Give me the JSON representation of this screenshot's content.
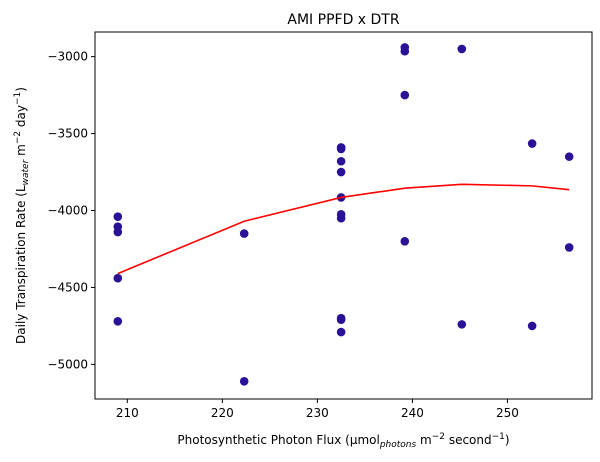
{
  "chart_data": {
    "type": "scatter",
    "title": "AMI PPFD x DTR",
    "xlabel": {
      "base": "Photosynthetic Photon Flux (μmol",
      "sub": "photons",
      "mid": " m",
      "sup1": "−2",
      "mid2": " second",
      "sup2": "−1",
      "end": ")"
    },
    "ylabel": {
      "base": "Daily Transpiration Rate (L",
      "sub": "water",
      "mid": " m",
      "sup1": "−2",
      "mid2": " day",
      "sup2": "−1",
      "end": ")"
    },
    "xlim": [
      206.6,
      258.9
    ],
    "ylim": [
      -5225,
      -2840
    ],
    "xticks": [
      210,
      220,
      230,
      240,
      250
    ],
    "xtick_labels": [
      "210",
      "220",
      "230",
      "240",
      "250"
    ],
    "yticks": [
      -5000,
      -4500,
      -4000,
      -3500,
      -3000
    ],
    "ytick_labels": [
      "−5000",
      "−4500",
      "−4000",
      "−3500",
      "−3000"
    ],
    "grid": false,
    "colors": {
      "points": "#2a1196",
      "line": "#ff0000"
    },
    "series": [
      {
        "kind": "scatter",
        "points": [
          [
            209.0,
            -4040
          ],
          [
            209.0,
            -4105
          ],
          [
            209.0,
            -4140
          ],
          [
            209.0,
            -4440
          ],
          [
            209.0,
            -4720
          ],
          [
            222.3,
            -4150
          ],
          [
            222.3,
            -5110
          ],
          [
            232.5,
            -3590
          ],
          [
            232.5,
            -3600
          ],
          [
            232.5,
            -3680
          ],
          [
            232.5,
            -3750
          ],
          [
            232.5,
            -3915
          ],
          [
            232.5,
            -4025
          ],
          [
            232.5,
            -4050
          ],
          [
            232.5,
            -4700
          ],
          [
            232.5,
            -4710
          ],
          [
            232.5,
            -4790
          ],
          [
            239.2,
            -2940
          ],
          [
            239.2,
            -2965
          ],
          [
            239.2,
            -3250
          ],
          [
            239.2,
            -4200
          ],
          [
            245.2,
            -2950
          ],
          [
            245.2,
            -4740
          ],
          [
            252.6,
            -3565
          ],
          [
            252.6,
            -4750
          ],
          [
            256.5,
            -3650
          ],
          [
            256.5,
            -4240
          ]
        ]
      },
      {
        "kind": "line",
        "points": [
          [
            209.0,
            -4410
          ],
          [
            222.3,
            -4070
          ],
          [
            232.5,
            -3915
          ],
          [
            239.2,
            -3855
          ],
          [
            245.2,
            -3830
          ],
          [
            252.6,
            -3840
          ],
          [
            256.5,
            -3865
          ]
        ]
      }
    ]
  }
}
